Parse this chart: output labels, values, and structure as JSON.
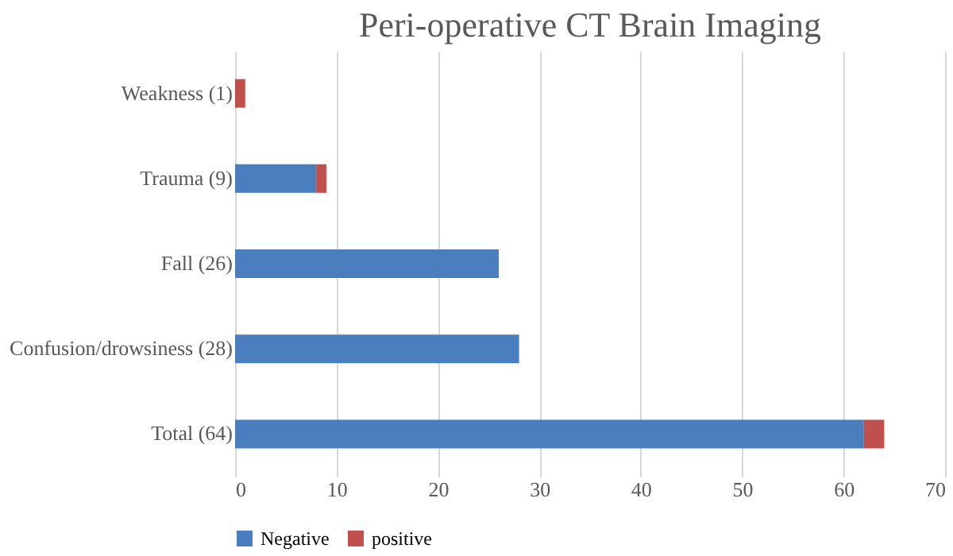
{
  "chart_data": {
    "type": "bar",
    "orientation": "horizontal",
    "stacked": true,
    "title": "Peri-operative CT Brain Imaging",
    "categories": [
      "Weakness (1)",
      "Trauma (9)",
      "Fall (26)",
      "Confusion/drowsiness (28)",
      "Total (64)"
    ],
    "series": [
      {
        "name": "Negative",
        "color": "#4a7ebf",
        "values": [
          0,
          8,
          26,
          28,
          62
        ]
      },
      {
        "name": "positive",
        "color": "#c0504d",
        "values": [
          1,
          1,
          0,
          0,
          2
        ]
      }
    ],
    "xlim": [
      0,
      70
    ],
    "xticks": [
      0,
      10,
      20,
      30,
      40,
      50,
      60,
      70
    ],
    "grid": "x",
    "legend": "bottom"
  }
}
